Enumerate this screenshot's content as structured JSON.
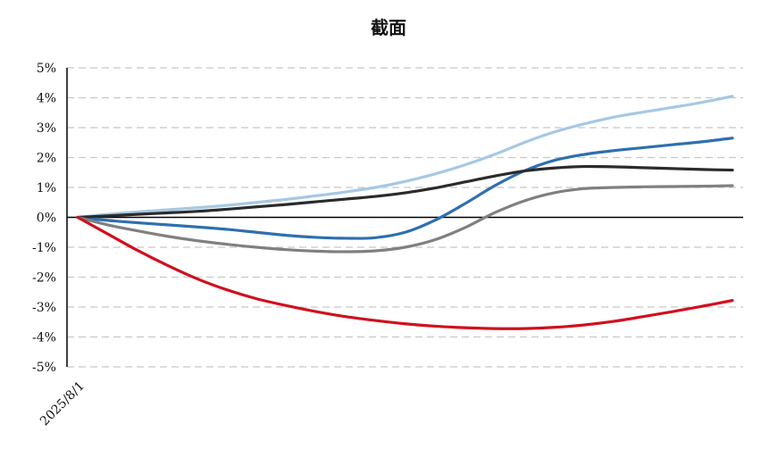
{
  "chart_data": {
    "type": "line",
    "title": "截面",
    "xlabel": "",
    "ylabel": "",
    "x": [
      0,
      1,
      2,
      3,
      4,
      5,
      6,
      7,
      8,
      9,
      10,
      11,
      12,
      13,
      14,
      15,
      16,
      17,
      18,
      19,
      20,
      21,
      22
    ],
    "x_tick_labels": [
      "2025/8/1"
    ],
    "ylim": [
      -5,
      5
    ],
    "yticks": [
      5,
      4,
      3,
      2,
      1,
      0,
      -1,
      -2,
      -3,
      -4,
      -5
    ],
    "ytick_labels": [
      "5%",
      "4%",
      "3%",
      "2%",
      "1%",
      "0%",
      "-1%",
      "-2%",
      "-3%",
      "-4%",
      "-5%"
    ],
    "grid": "horizontal dashed",
    "legend": "none",
    "series": [
      {
        "color": "#a6c8e4",
        "values": [
          0.0,
          0.1,
          0.18,
          0.25,
          0.32,
          0.4,
          0.5,
          0.6,
          0.72,
          0.85,
          1.0,
          1.2,
          1.45,
          1.75,
          2.1,
          2.5,
          2.85,
          3.12,
          3.35,
          3.52,
          3.68,
          3.85,
          4.05
        ]
      },
      {
        "color": "#2e6fb0",
        "values": [
          0.0,
          -0.1,
          -0.18,
          -0.25,
          -0.32,
          -0.4,
          -0.5,
          -0.6,
          -0.67,
          -0.7,
          -0.68,
          -0.5,
          -0.1,
          0.45,
          1.05,
          1.55,
          1.9,
          2.1,
          2.23,
          2.33,
          2.43,
          2.53,
          2.65
        ]
      },
      {
        "color": "#2b2b2b",
        "values": [
          0.0,
          0.05,
          0.1,
          0.15,
          0.2,
          0.27,
          0.35,
          0.43,
          0.52,
          0.61,
          0.7,
          0.82,
          0.98,
          1.18,
          1.38,
          1.55,
          1.65,
          1.7,
          1.69,
          1.66,
          1.63,
          1.6,
          1.58
        ]
      },
      {
        "color": "#808080",
        "values": [
          0.0,
          -0.25,
          -0.45,
          -0.63,
          -0.78,
          -0.9,
          -1.0,
          -1.08,
          -1.13,
          -1.15,
          -1.12,
          -1.0,
          -0.75,
          -0.35,
          0.15,
          0.55,
          0.82,
          0.96,
          1.0,
          1.02,
          1.03,
          1.04,
          1.06
        ]
      },
      {
        "color": "#d0101e",
        "values": [
          0.0,
          -0.55,
          -1.1,
          -1.6,
          -2.05,
          -2.42,
          -2.72,
          -2.95,
          -3.15,
          -3.32,
          -3.45,
          -3.56,
          -3.64,
          -3.69,
          -3.72,
          -3.72,
          -3.68,
          -3.6,
          -3.48,
          -3.32,
          -3.15,
          -2.97,
          -2.78
        ]
      }
    ]
  }
}
